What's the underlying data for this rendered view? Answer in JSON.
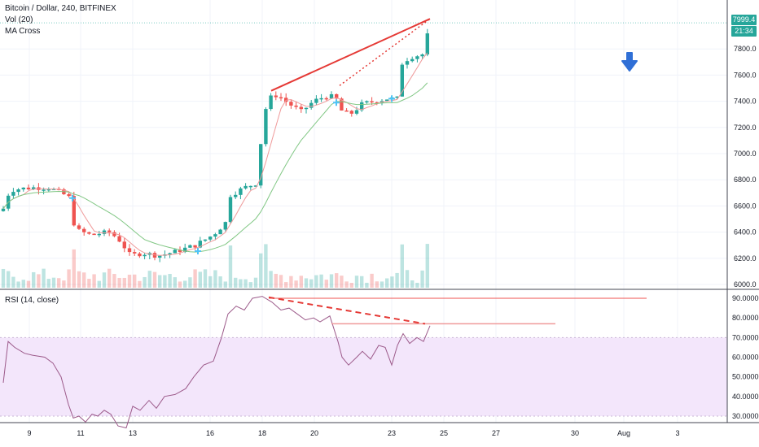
{
  "main_legend": {
    "symbol": "Bitcoin / Dollar, 240, BITFINEX",
    "vol": "Vol (20)",
    "ma": "MA Cross"
  },
  "rsi_legend": {
    "label": "RSI (14, close)"
  },
  "price_axis": {
    "ticks": [
      "7800.0",
      "7600.0",
      "7400.0",
      "7200.0",
      "7000.0",
      "6800.0",
      "6600.0",
      "6400.0",
      "6200.0",
      "6000.0"
    ],
    "ticks_values": [
      7800,
      7600,
      7400,
      7200,
      7000,
      6800,
      6600,
      6400,
      6200,
      6000
    ],
    "last_price": "7999.4",
    "countdown": "21:34",
    "last_price_color": "#26a69a",
    "countdown_color": "#26a69a"
  },
  "rsi_axis": {
    "ticks": [
      "90.0000",
      "80.0000",
      "70.0000",
      "60.0000",
      "50.0000",
      "40.0000",
      "30.0000"
    ],
    "ticks_values": [
      90,
      80,
      70,
      60,
      50,
      40,
      30
    ]
  },
  "time_axis": {
    "labels": [
      "9",
      "11",
      "13",
      "16",
      "18",
      "20",
      "23",
      "25",
      "27",
      "30",
      "Aug",
      "3"
    ]
  },
  "colors": {
    "up": "#26a69a",
    "down": "#ef5350",
    "trend_line": "#e53935",
    "rsi_line": "#9c5a8a",
    "rsi_band": "#f3e6fb",
    "arrow": "#2962ff"
  },
  "icons": {
    "down_arrow": "arrow-down-icon"
  }
}
